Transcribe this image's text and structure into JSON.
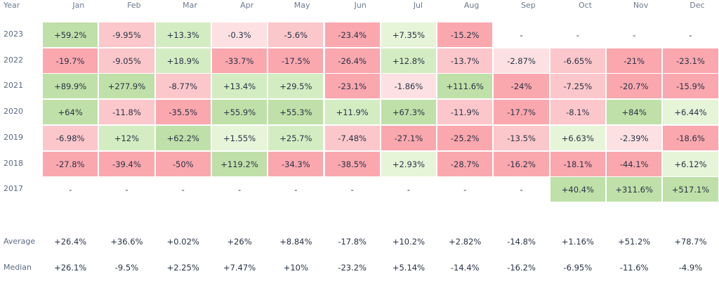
{
  "chart_data": {
    "type": "heatmap",
    "year_header": "Year",
    "months": [
      "Jan",
      "Feb",
      "Mar",
      "Apr",
      "May",
      "Jun",
      "Jul",
      "Aug",
      "Sep",
      "Oct",
      "Nov",
      "Dec"
    ],
    "rows": [
      {
        "year": "2023",
        "values": [
          "+59.2%",
          "-9.95%",
          "+13.3%",
          "-0.3%",
          "-5.6%",
          "-23.4%",
          "+7.35%",
          "-15.2%",
          "-",
          "-",
          "-",
          "-"
        ]
      },
      {
        "year": "2022",
        "values": [
          "-19.7%",
          "-9.05%",
          "+18.9%",
          "-33.7%",
          "-17.5%",
          "-26.4%",
          "+12.8%",
          "-13.7%",
          "-2.87%",
          "-6.65%",
          "-21%",
          "-23.1%"
        ]
      },
      {
        "year": "2021",
        "values": [
          "+89.9%",
          "+277.9%",
          "-8.77%",
          "+13.4%",
          "+29.5%",
          "-23.1%",
          "-1.86%",
          "+111.6%",
          "-24%",
          "-7.25%",
          "-20.7%",
          "-15.9%"
        ]
      },
      {
        "year": "2020",
        "values": [
          "+64%",
          "-11.8%",
          "-35.5%",
          "+55.9%",
          "+55.3%",
          "+11.9%",
          "+67.3%",
          "-11.9%",
          "-17.7%",
          "-8.1%",
          "+84%",
          "+6.44%"
        ]
      },
      {
        "year": "2019",
        "values": [
          "-6.98%",
          "+12%",
          "+62.2%",
          "+1.55%",
          "+25.7%",
          "-7.48%",
          "-27.1%",
          "-25.2%",
          "-13.5%",
          "+6.63%",
          "-2.39%",
          "-18.6%"
        ]
      },
      {
        "year": "2018",
        "values": [
          "-27.8%",
          "-39.4%",
          "-50%",
          "+119.2%",
          "-34.3%",
          "-38.5%",
          "+2.93%",
          "-28.7%",
          "-16.2%",
          "-18.1%",
          "-44.1%",
          "+6.12%"
        ]
      },
      {
        "year": "2017",
        "values": [
          "-",
          "-",
          "-",
          "-",
          "-",
          "-",
          "-",
          "-",
          "-",
          "+40.4%",
          "+311.6%",
          "+517.1%"
        ]
      }
    ],
    "summary": [
      {
        "label": "Average",
        "values": [
          "+26.4%",
          "+36.6%",
          "+0.02%",
          "+26%",
          "+8.84%",
          "-17.8%",
          "+10.2%",
          "+2.82%",
          "-14.8%",
          "+1.16%",
          "+51.2%",
          "+78.7%"
        ]
      },
      {
        "label": "Median",
        "values": [
          "+26.1%",
          "-9.5%",
          "+2.25%",
          "+7.47%",
          "+10%",
          "-23.2%",
          "+5.14%",
          "-14.4%",
          "-16.2%",
          "-6.95%",
          "-11.6%",
          "-4.9%"
        ]
      }
    ],
    "colors": {
      "neg_light": "#fde1e2",
      "neg_mid": "#fcc7cb",
      "neg_strong": "#fba7ae",
      "pos_light": "#e6f4d8",
      "pos_mid": "#d4ecc2",
      "pos_strong": "#bfe0a8",
      "empty": "#ffffff"
    }
  }
}
